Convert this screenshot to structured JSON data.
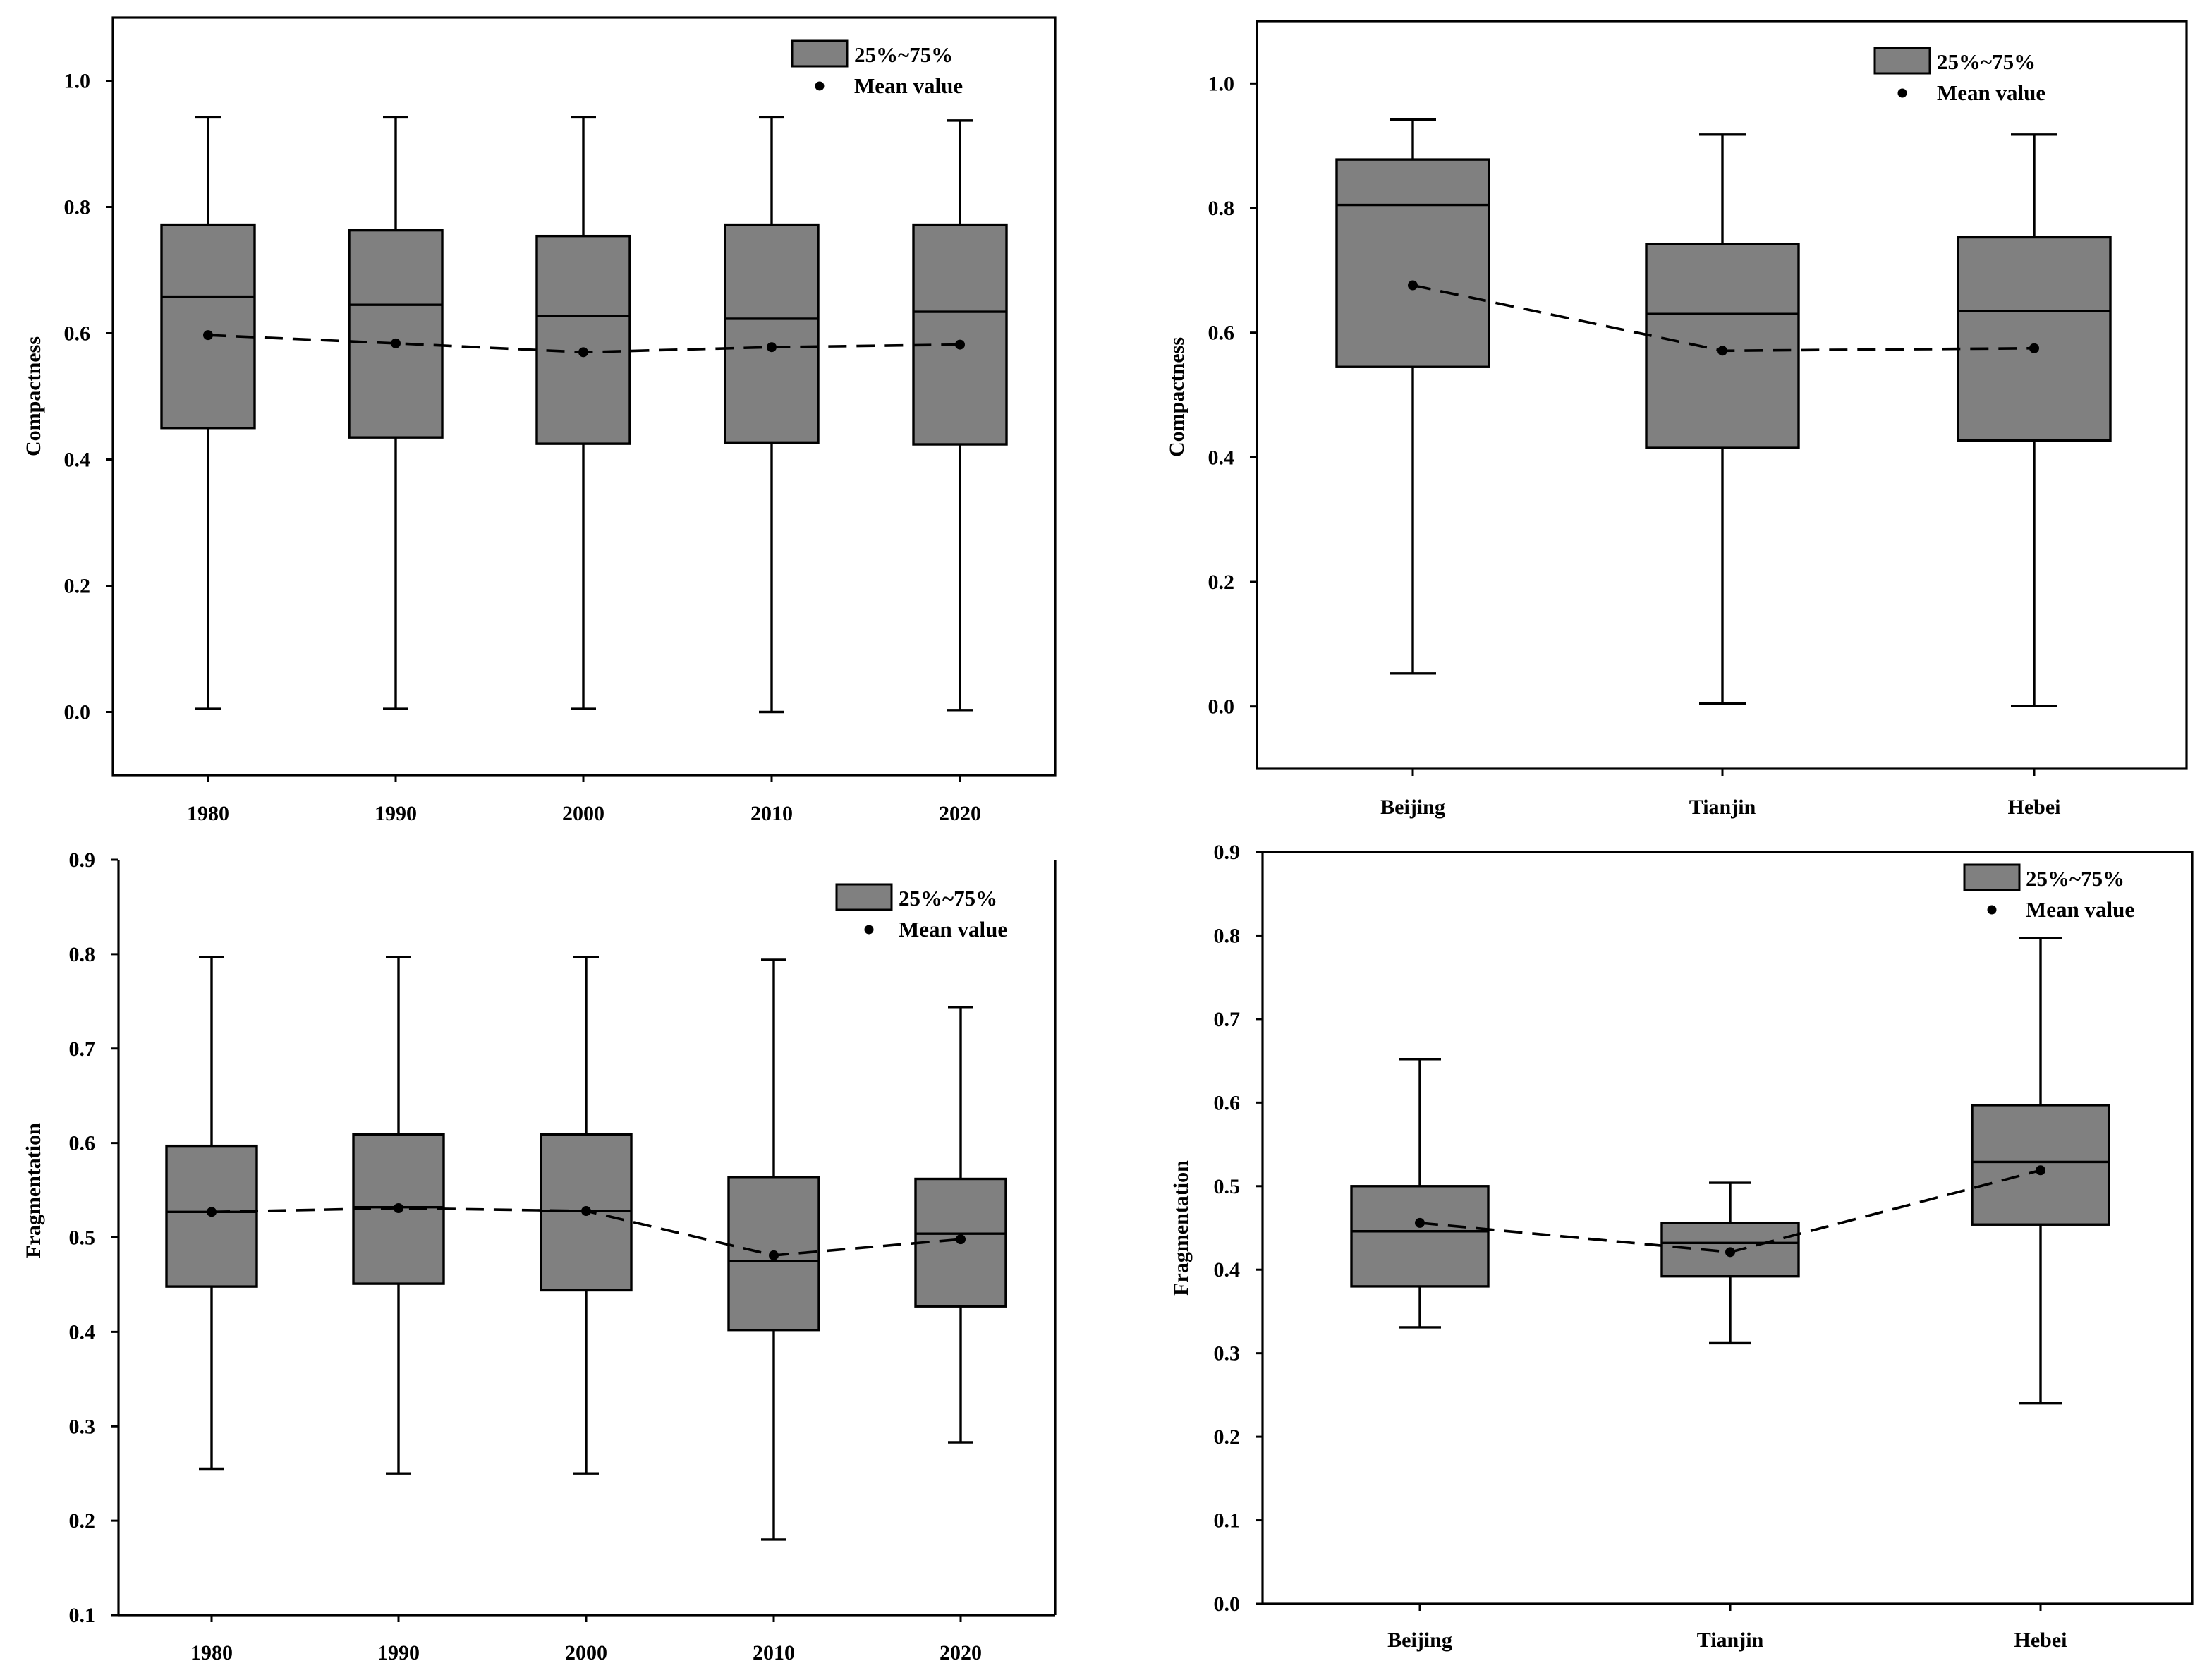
{
  "chart_data": [
    {
      "id": "compactness-by-year",
      "type": "box",
      "ylabel": "Compactness",
      "xlabel": "",
      "categories": [
        "1980",
        "1990",
        "2000",
        "2010",
        "2020"
      ],
      "ylim": [
        -0.1,
        1.1
      ],
      "yticks": [
        0.0,
        0.2,
        0.4,
        0.6,
        0.8,
        1.0
      ],
      "ytick_labels": [
        "0.0",
        "0.2",
        "0.4",
        "0.6",
        "0.8",
        "1.0"
      ],
      "boxes": [
        {
          "min": 0.005,
          "q1": 0.45,
          "median": 0.658,
          "q3": 0.772,
          "max": 0.942
        },
        {
          "min": 0.005,
          "q1": 0.435,
          "median": 0.645,
          "q3": 0.763,
          "max": 0.942
        },
        {
          "min": 0.005,
          "q1": 0.425,
          "median": 0.627,
          "q3": 0.754,
          "max": 0.942
        },
        {
          "min": 0.0,
          "q1": 0.427,
          "median": 0.623,
          "q3": 0.772,
          "max": 0.942
        },
        {
          "min": 0.003,
          "q1": 0.424,
          "median": 0.634,
          "q3": 0.772,
          "max": 0.937
        }
      ],
      "means": [
        0.597,
        0.584,
        0.57,
        0.578,
        0.582
      ],
      "legend": {
        "box_label": "25%~75%",
        "mean_label": "Mean value",
        "position": "top-right"
      },
      "box_color": "#808080"
    },
    {
      "id": "compactness-by-region",
      "type": "box",
      "ylabel": "Compactness",
      "xlabel": "",
      "categories": [
        "Beijing",
        "Tianjin",
        "Hebei"
      ],
      "ylim": [
        -0.1,
        1.1
      ],
      "yticks": [
        0.0,
        0.2,
        0.4,
        0.6,
        0.8,
        1.0
      ],
      "ytick_labels": [
        "0.0",
        "0.2",
        "0.4",
        "0.6",
        "0.8",
        "1.0"
      ],
      "boxes": [
        {
          "min": 0.053,
          "q1": 0.545,
          "median": 0.805,
          "q3": 0.878,
          "max": 0.942
        },
        {
          "min": 0.005,
          "q1": 0.415,
          "median": 0.63,
          "q3": 0.742,
          "max": 0.918
        },
        {
          "min": 0.001,
          "q1": 0.427,
          "median": 0.635,
          "q3": 0.753,
          "max": 0.918
        }
      ],
      "means": [
        0.676,
        0.571,
        0.575
      ],
      "legend": {
        "box_label": "25%~75%",
        "mean_label": "Mean value",
        "position": "top-right"
      },
      "box_color": "#808080"
    },
    {
      "id": "fragmentation-by-year",
      "type": "box",
      "ylabel": "Fragmentation",
      "xlabel": "",
      "categories": [
        "1980",
        "1990",
        "2000",
        "2010",
        "2020"
      ],
      "ylim": [
        0.1,
        0.9
      ],
      "yticks": [
        0.1,
        0.2,
        0.3,
        0.4,
        0.5,
        0.6,
        0.7,
        0.8,
        0.9
      ],
      "ytick_labels": [
        "0.1",
        "0.2",
        "0.3",
        "0.4",
        "0.5",
        "0.6",
        "0.7",
        "0.8",
        "0.9"
      ],
      "boxes": [
        {
          "min": 0.255,
          "q1": 0.448,
          "median": 0.527,
          "q3": 0.597,
          "max": 0.797
        },
        {
          "min": 0.25,
          "q1": 0.451,
          "median": 0.532,
          "q3": 0.609,
          "max": 0.797
        },
        {
          "min": 0.25,
          "q1": 0.444,
          "median": 0.528,
          "q3": 0.609,
          "max": 0.797
        },
        {
          "min": 0.18,
          "q1": 0.402,
          "median": 0.475,
          "q3": 0.564,
          "max": 0.794
        },
        {
          "min": 0.283,
          "q1": 0.427,
          "median": 0.504,
          "q3": 0.562,
          "max": 0.744
        }
      ],
      "means": [
        0.527,
        0.531,
        0.528,
        0.481,
        0.498
      ],
      "legend": {
        "box_label": "25%~75%",
        "mean_label": "Mean value",
        "position": "top-right"
      },
      "box_color": "#808080"
    },
    {
      "id": "fragmentation-by-region",
      "type": "box",
      "ylabel": "Fragmentation",
      "xlabel": "",
      "categories": [
        "Beijing",
        "Tianjin",
        "Hebei"
      ],
      "ylim": [
        0.0,
        0.9
      ],
      "yticks": [
        0.0,
        0.1,
        0.2,
        0.3,
        0.4,
        0.5,
        0.6,
        0.7,
        0.8,
        0.9
      ],
      "ytick_labels": [
        "0.0",
        "0.1",
        "0.2",
        "0.3",
        "0.4",
        "0.5",
        "0.6",
        "0.7",
        "0.8",
        "0.9"
      ],
      "boxes": [
        {
          "min": 0.331,
          "q1": 0.38,
          "median": 0.446,
          "q3": 0.5,
          "max": 0.652
        },
        {
          "min": 0.312,
          "q1": 0.392,
          "median": 0.432,
          "q3": 0.456,
          "max": 0.504
        },
        {
          "min": 0.24,
          "q1": 0.454,
          "median": 0.529,
          "q3": 0.597,
          "max": 0.797
        }
      ],
      "means": [
        0.456,
        0.421,
        0.519
      ],
      "legend": {
        "box_label": "25%~75%",
        "mean_label": "Mean value",
        "position": "top-right"
      },
      "box_color": "#808080"
    }
  ]
}
